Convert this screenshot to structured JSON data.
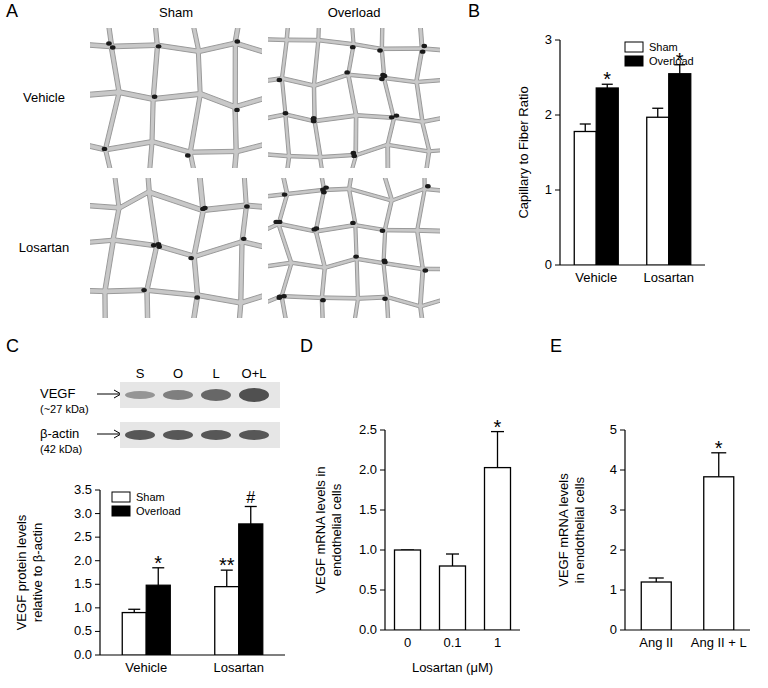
{
  "micrographs": {
    "title": "A",
    "columns": [
      "Sham",
      "Overload"
    ],
    "rows": [
      "Vehicle",
      "Losartan"
    ]
  },
  "blot": {
    "lanes": [
      "S",
      "O",
      "L",
      "O+L"
    ],
    "bands": [
      {
        "name": "VEGF",
        "size": "(~27 kDa)"
      },
      {
        "name": "β-actin",
        "size": "(42 kDa)"
      }
    ]
  },
  "chart_data": [
    {
      "type": "bar",
      "title": "B",
      "y_label": [
        "Capillary to Fiber Ratio"
      ],
      "categories": [
        "Vehicle",
        "Losartan"
      ],
      "series": [
        {
          "name": "Sham",
          "color": "#ffffff",
          "values": [
            1.78,
            1.97
          ],
          "errors": [
            0.1,
            0.12
          ]
        },
        {
          "name": "Overload",
          "color": "#000000",
          "values": [
            2.36,
            2.55
          ],
          "errors": [
            0.05,
            0.12
          ],
          "annotations": [
            "*",
            "*"
          ]
        }
      ],
      "ylim": [
        0,
        3
      ],
      "yticks": [
        0,
        1,
        2,
        3
      ],
      "legend": "upper right"
    },
    {
      "type": "bar",
      "title": "C",
      "y_label": [
        "VEGF protein levels",
        "relative to β-actin"
      ],
      "categories": [
        "Vehicle",
        "Losartan"
      ],
      "series": [
        {
          "name": "Sham",
          "color": "#ffffff",
          "values": [
            0.9,
            1.45
          ],
          "errors": [
            0.07,
            0.35
          ],
          "annotations": [
            null,
            "**"
          ]
        },
        {
          "name": "Overload",
          "color": "#000000",
          "values": [
            1.48,
            2.78
          ],
          "errors": [
            0.37,
            0.37
          ],
          "annotations": [
            "*",
            "#"
          ]
        }
      ],
      "ylim": [
        0,
        3.5
      ],
      "yticks": [
        {
          "value": 0,
          "label": "0.0"
        },
        0.5,
        {
          "value": 1,
          "label": "1.0"
        },
        1.5,
        {
          "value": 2,
          "label": "2.0"
        },
        2.5,
        {
          "value": 3,
          "label": "3.0"
        },
        3.5
      ],
      "legend": "upper left"
    },
    {
      "type": "bar",
      "title": "D",
      "y_label": [
        "VEGF mRNA levels in",
        "endothelial cells"
      ],
      "x_label": "Losartan (μM)",
      "categories": [
        "0",
        "0.1",
        "1"
      ],
      "values": [
        1.0,
        0.8,
        2.03
      ],
      "errors": [
        0,
        0.15,
        0.45
      ],
      "annotations": [
        null,
        null,
        "*"
      ],
      "color": "#ffffff",
      "ylim": [
        0,
        2.5
      ],
      "yticks": [
        {
          "value": 0,
          "label": "0.0"
        },
        0.5,
        {
          "value": 1,
          "label": "1.0"
        },
        1.5,
        {
          "value": 2,
          "label": "2.0"
        },
        2.5
      ]
    },
    {
      "type": "bar",
      "title": "E",
      "y_label": [
        "VEGF mRNA levels",
        "in endothelial cells"
      ],
      "categories": [
        "Ang II",
        "Ang II + L"
      ],
      "values": [
        1.2,
        3.83
      ],
      "errors": [
        0.1,
        0.6
      ],
      "annotations": [
        null,
        "*"
      ],
      "color": "#ffffff",
      "ylim": [
        0,
        5
      ],
      "yticks": [
        0,
        1,
        2,
        3,
        4,
        5
      ]
    }
  ]
}
